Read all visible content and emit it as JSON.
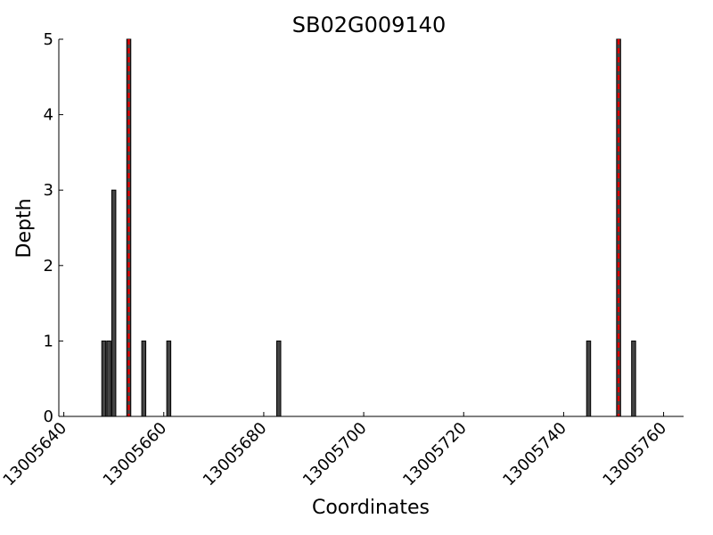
{
  "chart_data": {
    "type": "bar",
    "title": "SB02G009140",
    "xlabel": "Coordinates",
    "ylabel": "Depth",
    "xlim": [
      13005639,
      13005764
    ],
    "ylim": [
      0,
      5
    ],
    "x_ticks": [
      13005640,
      13005660,
      13005680,
      13005700,
      13005720,
      13005740,
      13005760
    ],
    "y_ticks": [
      0,
      1,
      2,
      3,
      4,
      5
    ],
    "grid": false,
    "bar_color": "#444444",
    "marker_line_color": "#dd0000",
    "bars": [
      {
        "x": 13005648,
        "value": 1
      },
      {
        "x": 13005649,
        "value": 1
      },
      {
        "x": 13005650,
        "value": 3
      },
      {
        "x": 13005653,
        "value": 5
      },
      {
        "x": 13005656,
        "value": 1
      },
      {
        "x": 13005661,
        "value": 1
      },
      {
        "x": 13005683,
        "value": 1
      },
      {
        "x": 13005745,
        "value": 1
      },
      {
        "x": 13005751,
        "value": 5
      },
      {
        "x": 13005754,
        "value": 1
      }
    ],
    "marker_lines": [
      13005653,
      13005751
    ]
  }
}
